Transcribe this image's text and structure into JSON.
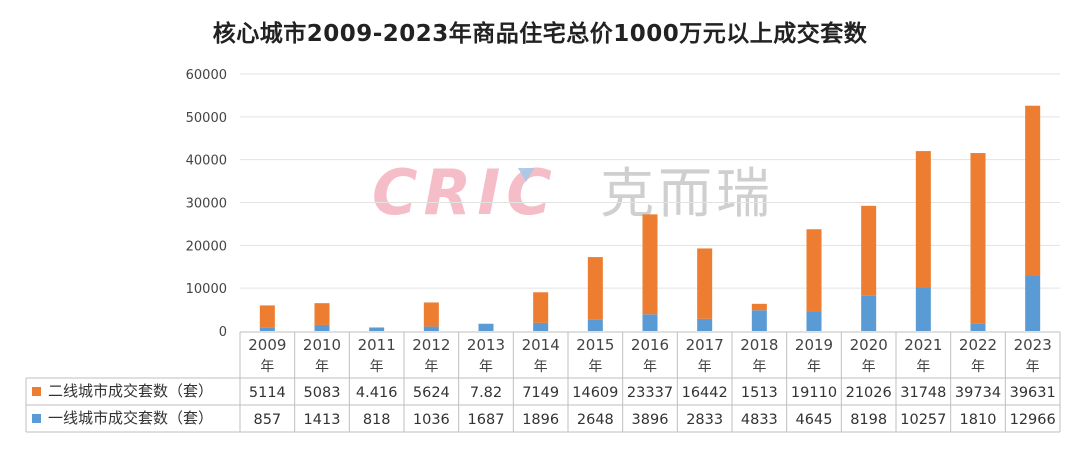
{
  "chart_data": {
    "type": "bar",
    "stacked": true,
    "title": "核心城市2009-2023年商品住宅总价1000万元以上成交套数",
    "categories": [
      "2009年",
      "2010年",
      "2011年",
      "2012年",
      "2013年",
      "2014年",
      "2015年",
      "2016年",
      "2017年",
      "2018年",
      "2019年",
      "2020年",
      "2021年",
      "2022年",
      "2023年"
    ],
    "category_years": [
      "2009",
      "2010",
      "2011",
      "2012",
      "2013",
      "2014",
      "2015",
      "2016",
      "2017",
      "2018",
      "2019",
      "2020",
      "2021",
      "2022",
      "2023"
    ],
    "category_suffix": "年",
    "ylim": [
      0,
      60000
    ],
    "yticks": [
      0,
      10000,
      20000,
      30000,
      40000,
      50000,
      60000
    ],
    "grid": true,
    "legend_placement": "data-table-left",
    "series": [
      {
        "name": "一线城市成交套数（套）",
        "color": "#5b9bd5",
        "values": [
          857,
          1413,
          818,
          1036,
          1687,
          1896,
          2648,
          3896,
          2833,
          4833,
          4645,
          8198,
          10257,
          1810,
          12966
        ],
        "labels": [
          "857",
          "1413",
          "818",
          "1036",
          "1687",
          "1896",
          "2648",
          "3896",
          "2833",
          "4833",
          "4645",
          "8198",
          "10257",
          "1810",
          "12966"
        ]
      },
      {
        "name": "二线城市成交套数（套）",
        "color": "#ed7d31",
        "values": [
          5114,
          5083,
          4.416,
          5624,
          7.82,
          7149,
          14609,
          23337,
          16442,
          1513,
          19110,
          21026,
          31748,
          39734,
          39631
        ],
        "labels": [
          "5114",
          "5083",
          "4.416",
          "5624",
          "7.82",
          "7149",
          "14609",
          "23337",
          "16442",
          "1513",
          "19110",
          "21026",
          "31748",
          "39734",
          "39631"
        ]
      }
    ],
    "watermark": {
      "latin": "CRIC",
      "cjk": "克而瑞",
      "color": "#f4b6c2"
    }
  }
}
